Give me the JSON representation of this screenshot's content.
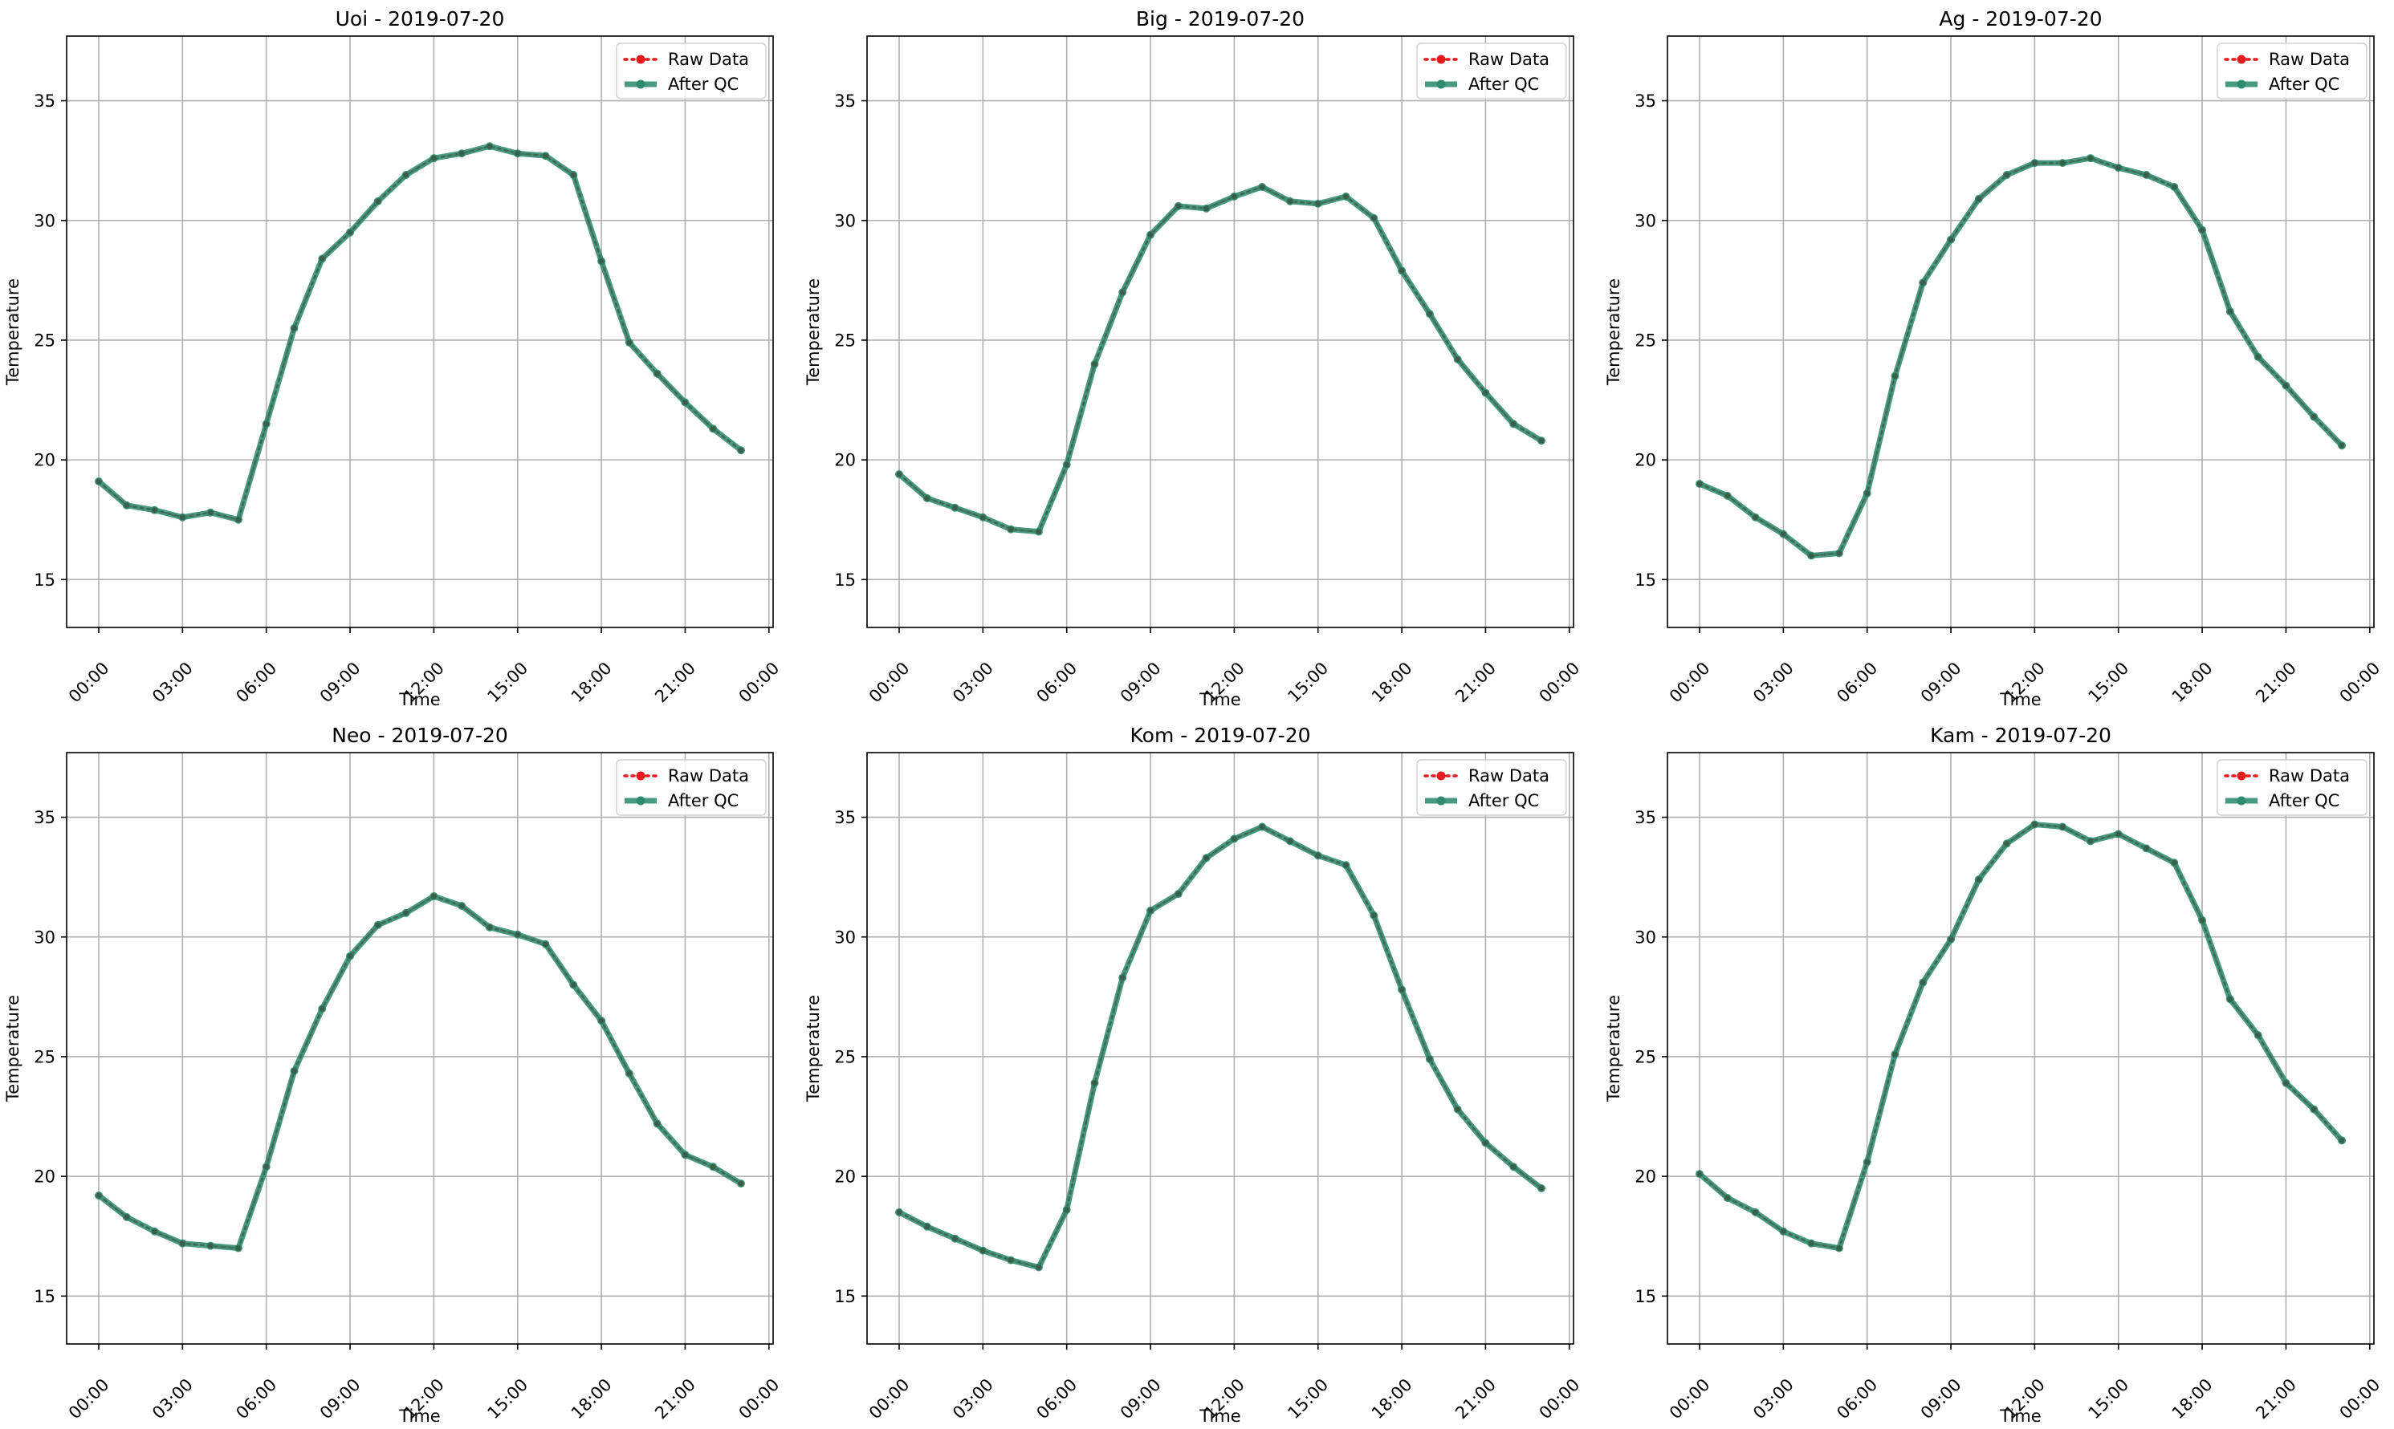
{
  "colors": {
    "raw": "#e41a1c",
    "qc": "#2e8b6e",
    "grid": "#b0b0b0",
    "axis": "#000000"
  },
  "legend": {
    "raw_label": "Raw Data",
    "qc_label": "After QC"
  },
  "chart_data": [
    {
      "type": "line",
      "title": "Uoi - 2019-07-20",
      "xlabel": "Time",
      "ylabel": "Temperature",
      "xlim": [
        -1.15,
        24.15
      ],
      "ylim": [
        13,
        37.7
      ],
      "xticks": [
        0,
        3,
        6,
        9,
        12,
        15,
        18,
        21,
        24
      ],
      "xtick_labels": [
        "00:00",
        "03:00",
        "06:00",
        "09:00",
        "12:00",
        "15:00",
        "18:00",
        "21:00",
        "00:00"
      ],
      "yticks": [
        15,
        20,
        25,
        30,
        35
      ],
      "ytick_labels": [
        "15",
        "20",
        "25",
        "30",
        "35"
      ],
      "grid": true,
      "legend_position": "upper-right",
      "x": [
        0,
        1,
        2,
        3,
        4,
        5,
        6,
        7,
        8,
        9,
        10,
        11,
        12,
        13,
        14,
        15,
        16,
        17,
        18,
        19,
        20,
        21,
        22,
        23
      ],
      "series": [
        {
          "name": "Raw Data",
          "values": [
            19.1,
            18.1,
            17.9,
            17.6,
            17.8,
            17.5,
            21.5,
            25.5,
            28.4,
            29.5,
            30.8,
            31.9,
            32.6,
            32.8,
            33.1,
            32.8,
            32.7,
            31.9,
            28.3,
            24.9,
            23.6,
            22.4,
            21.3,
            20.4
          ]
        },
        {
          "name": "After QC",
          "values": [
            19.1,
            18.1,
            17.9,
            17.6,
            17.8,
            17.5,
            21.5,
            25.5,
            28.4,
            29.5,
            30.8,
            31.9,
            32.6,
            32.8,
            33.1,
            32.8,
            32.7,
            31.9,
            28.3,
            24.9,
            23.6,
            22.4,
            21.3,
            20.4
          ]
        }
      ]
    },
    {
      "type": "line",
      "title": "Big - 2019-07-20",
      "xlabel": "Time",
      "ylabel": "Temperature",
      "xlim": [
        -1.15,
        24.15
      ],
      "ylim": [
        13,
        37.7
      ],
      "xticks": [
        0,
        3,
        6,
        9,
        12,
        15,
        18,
        21,
        24
      ],
      "xtick_labels": [
        "00:00",
        "03:00",
        "06:00",
        "09:00",
        "12:00",
        "15:00",
        "18:00",
        "21:00",
        "00:00"
      ],
      "yticks": [
        15,
        20,
        25,
        30,
        35
      ],
      "ytick_labels": [
        "15",
        "20",
        "25",
        "30",
        "35"
      ],
      "grid": true,
      "legend_position": "upper-right",
      "x": [
        0,
        1,
        2,
        3,
        4,
        5,
        6,
        7,
        8,
        9,
        10,
        11,
        12,
        13,
        14,
        15,
        16,
        17,
        18,
        19,
        20,
        21,
        22,
        23
      ],
      "series": [
        {
          "name": "Raw Data",
          "values": [
            19.4,
            18.4,
            18.0,
            17.6,
            17.1,
            17.0,
            19.8,
            24.0,
            27.0,
            29.4,
            30.6,
            30.5,
            31.0,
            31.4,
            30.8,
            30.7,
            31.0,
            30.1,
            27.9,
            26.1,
            24.2,
            22.8,
            21.5,
            20.8
          ]
        },
        {
          "name": "After QC",
          "values": [
            19.4,
            18.4,
            18.0,
            17.6,
            17.1,
            17.0,
            19.8,
            24.0,
            27.0,
            29.4,
            30.6,
            30.5,
            31.0,
            31.4,
            30.8,
            30.7,
            31.0,
            30.1,
            27.9,
            26.1,
            24.2,
            22.8,
            21.5,
            20.8
          ]
        }
      ]
    },
    {
      "type": "line",
      "title": "Ag - 2019-07-20",
      "xlabel": "Time",
      "ylabel": "Temperature",
      "xlim": [
        -1.15,
        24.15
      ],
      "ylim": [
        13,
        37.7
      ],
      "xticks": [
        0,
        3,
        6,
        9,
        12,
        15,
        18,
        21,
        24
      ],
      "xtick_labels": [
        "00:00",
        "03:00",
        "06:00",
        "09:00",
        "12:00",
        "15:00",
        "18:00",
        "21:00",
        "00:00"
      ],
      "yticks": [
        15,
        20,
        25,
        30,
        35
      ],
      "ytick_labels": [
        "15",
        "20",
        "25",
        "30",
        "35"
      ],
      "grid": true,
      "legend_position": "upper-right",
      "x": [
        0,
        1,
        2,
        3,
        4,
        5,
        6,
        7,
        8,
        9,
        10,
        11,
        12,
        13,
        14,
        15,
        16,
        17,
        18,
        19,
        20,
        21,
        22,
        23
      ],
      "series": [
        {
          "name": "Raw Data",
          "values": [
            19.0,
            18.5,
            17.6,
            16.9,
            16.0,
            16.1,
            18.6,
            23.5,
            27.4,
            29.2,
            30.9,
            31.9,
            32.4,
            32.4,
            32.6,
            32.2,
            31.9,
            31.4,
            29.6,
            26.2,
            24.3,
            23.1,
            21.8,
            20.6
          ]
        },
        {
          "name": "After QC",
          "values": [
            19.0,
            18.5,
            17.6,
            16.9,
            16.0,
            16.1,
            18.6,
            23.5,
            27.4,
            29.2,
            30.9,
            31.9,
            32.4,
            32.4,
            32.6,
            32.2,
            31.9,
            31.4,
            29.6,
            26.2,
            24.3,
            23.1,
            21.8,
            20.6
          ]
        }
      ]
    },
    {
      "type": "line",
      "title": "Neo - 2019-07-20",
      "xlabel": "Time",
      "ylabel": "Temperature",
      "xlim": [
        -1.15,
        24.15
      ],
      "ylim": [
        13,
        37.7
      ],
      "xticks": [
        0,
        3,
        6,
        9,
        12,
        15,
        18,
        21,
        24
      ],
      "xtick_labels": [
        "00:00",
        "03:00",
        "06:00",
        "09:00",
        "12:00",
        "15:00",
        "18:00",
        "21:00",
        "00:00"
      ],
      "yticks": [
        15,
        20,
        25,
        30,
        35
      ],
      "ytick_labels": [
        "15",
        "20",
        "25",
        "30",
        "35"
      ],
      "grid": true,
      "legend_position": "upper-right",
      "x": [
        0,
        1,
        2,
        3,
        4,
        5,
        6,
        7,
        8,
        9,
        10,
        11,
        12,
        13,
        14,
        15,
        16,
        17,
        18,
        19,
        20,
        21,
        22,
        23
      ],
      "series": [
        {
          "name": "Raw Data",
          "values": [
            19.2,
            18.3,
            17.7,
            17.2,
            17.1,
            17.0,
            20.4,
            24.4,
            27.0,
            29.2,
            30.5,
            31.0,
            31.7,
            31.3,
            30.4,
            30.1,
            29.7,
            28.0,
            26.5,
            24.3,
            22.2,
            20.9,
            20.4,
            19.7
          ]
        },
        {
          "name": "After QC",
          "values": [
            19.2,
            18.3,
            17.7,
            17.2,
            17.1,
            17.0,
            20.4,
            24.4,
            27.0,
            29.2,
            30.5,
            31.0,
            31.7,
            31.3,
            30.4,
            30.1,
            29.7,
            28.0,
            26.5,
            24.3,
            22.2,
            20.9,
            20.4,
            19.7
          ]
        }
      ]
    },
    {
      "type": "line",
      "title": "Kom - 2019-07-20",
      "xlabel": "Time",
      "ylabel": "Temperature",
      "xlim": [
        -1.15,
        24.15
      ],
      "ylim": [
        13,
        37.7
      ],
      "xticks": [
        0,
        3,
        6,
        9,
        12,
        15,
        18,
        21,
        24
      ],
      "xtick_labels": [
        "00:00",
        "03:00",
        "06:00",
        "09:00",
        "12:00",
        "15:00",
        "18:00",
        "21:00",
        "00:00"
      ],
      "yticks": [
        15,
        20,
        25,
        30,
        35
      ],
      "ytick_labels": [
        "15",
        "20",
        "25",
        "30",
        "35"
      ],
      "grid": true,
      "legend_position": "upper-right",
      "x": [
        0,
        1,
        2,
        3,
        4,
        5,
        6,
        7,
        8,
        9,
        10,
        11,
        12,
        13,
        14,
        15,
        16,
        17,
        18,
        19,
        20,
        21,
        22,
        23
      ],
      "series": [
        {
          "name": "Raw Data",
          "values": [
            18.5,
            17.9,
            17.4,
            16.9,
            16.5,
            16.2,
            18.6,
            23.9,
            28.3,
            31.1,
            31.8,
            33.3,
            34.1,
            34.6,
            34.0,
            33.4,
            33.0,
            30.9,
            27.8,
            24.9,
            22.8,
            21.4,
            20.4,
            19.5
          ]
        },
        {
          "name": "After QC",
          "values": [
            18.5,
            17.9,
            17.4,
            16.9,
            16.5,
            16.2,
            18.6,
            23.9,
            28.3,
            31.1,
            31.8,
            33.3,
            34.1,
            34.6,
            34.0,
            33.4,
            33.0,
            30.9,
            27.8,
            24.9,
            22.8,
            21.4,
            20.4,
            19.5
          ]
        }
      ]
    },
    {
      "type": "line",
      "title": "Kam - 2019-07-20",
      "xlabel": "Time",
      "ylabel": "Temperature",
      "xlim": [
        -1.15,
        24.15
      ],
      "ylim": [
        13,
        37.7
      ],
      "xticks": [
        0,
        3,
        6,
        9,
        12,
        15,
        18,
        21,
        24
      ],
      "xtick_labels": [
        "00:00",
        "03:00",
        "06:00",
        "09:00",
        "12:00",
        "15:00",
        "18:00",
        "21:00",
        "00:00"
      ],
      "yticks": [
        15,
        20,
        25,
        30,
        35
      ],
      "ytick_labels": [
        "15",
        "20",
        "25",
        "30",
        "35"
      ],
      "grid": true,
      "legend_position": "upper-right",
      "x": [
        0,
        1,
        2,
        3,
        4,
        5,
        6,
        7,
        8,
        9,
        10,
        11,
        12,
        13,
        14,
        15,
        16,
        17,
        18,
        19,
        20,
        21,
        22,
        23
      ],
      "series": [
        {
          "name": "Raw Data",
          "values": [
            20.1,
            19.1,
            18.5,
            17.7,
            17.2,
            17.0,
            20.6,
            25.1,
            28.1,
            29.9,
            32.4,
            33.9,
            34.7,
            34.6,
            34.0,
            34.3,
            33.7,
            33.1,
            30.7,
            27.4,
            25.9,
            23.9,
            22.8,
            21.5
          ]
        },
        {
          "name": "After QC",
          "values": [
            20.1,
            19.1,
            18.5,
            17.7,
            17.2,
            17.0,
            20.6,
            25.1,
            28.1,
            29.9,
            32.4,
            33.9,
            34.7,
            34.6,
            34.0,
            34.3,
            33.7,
            33.1,
            30.7,
            27.4,
            25.9,
            23.9,
            22.8,
            21.5
          ]
        }
      ]
    }
  ]
}
